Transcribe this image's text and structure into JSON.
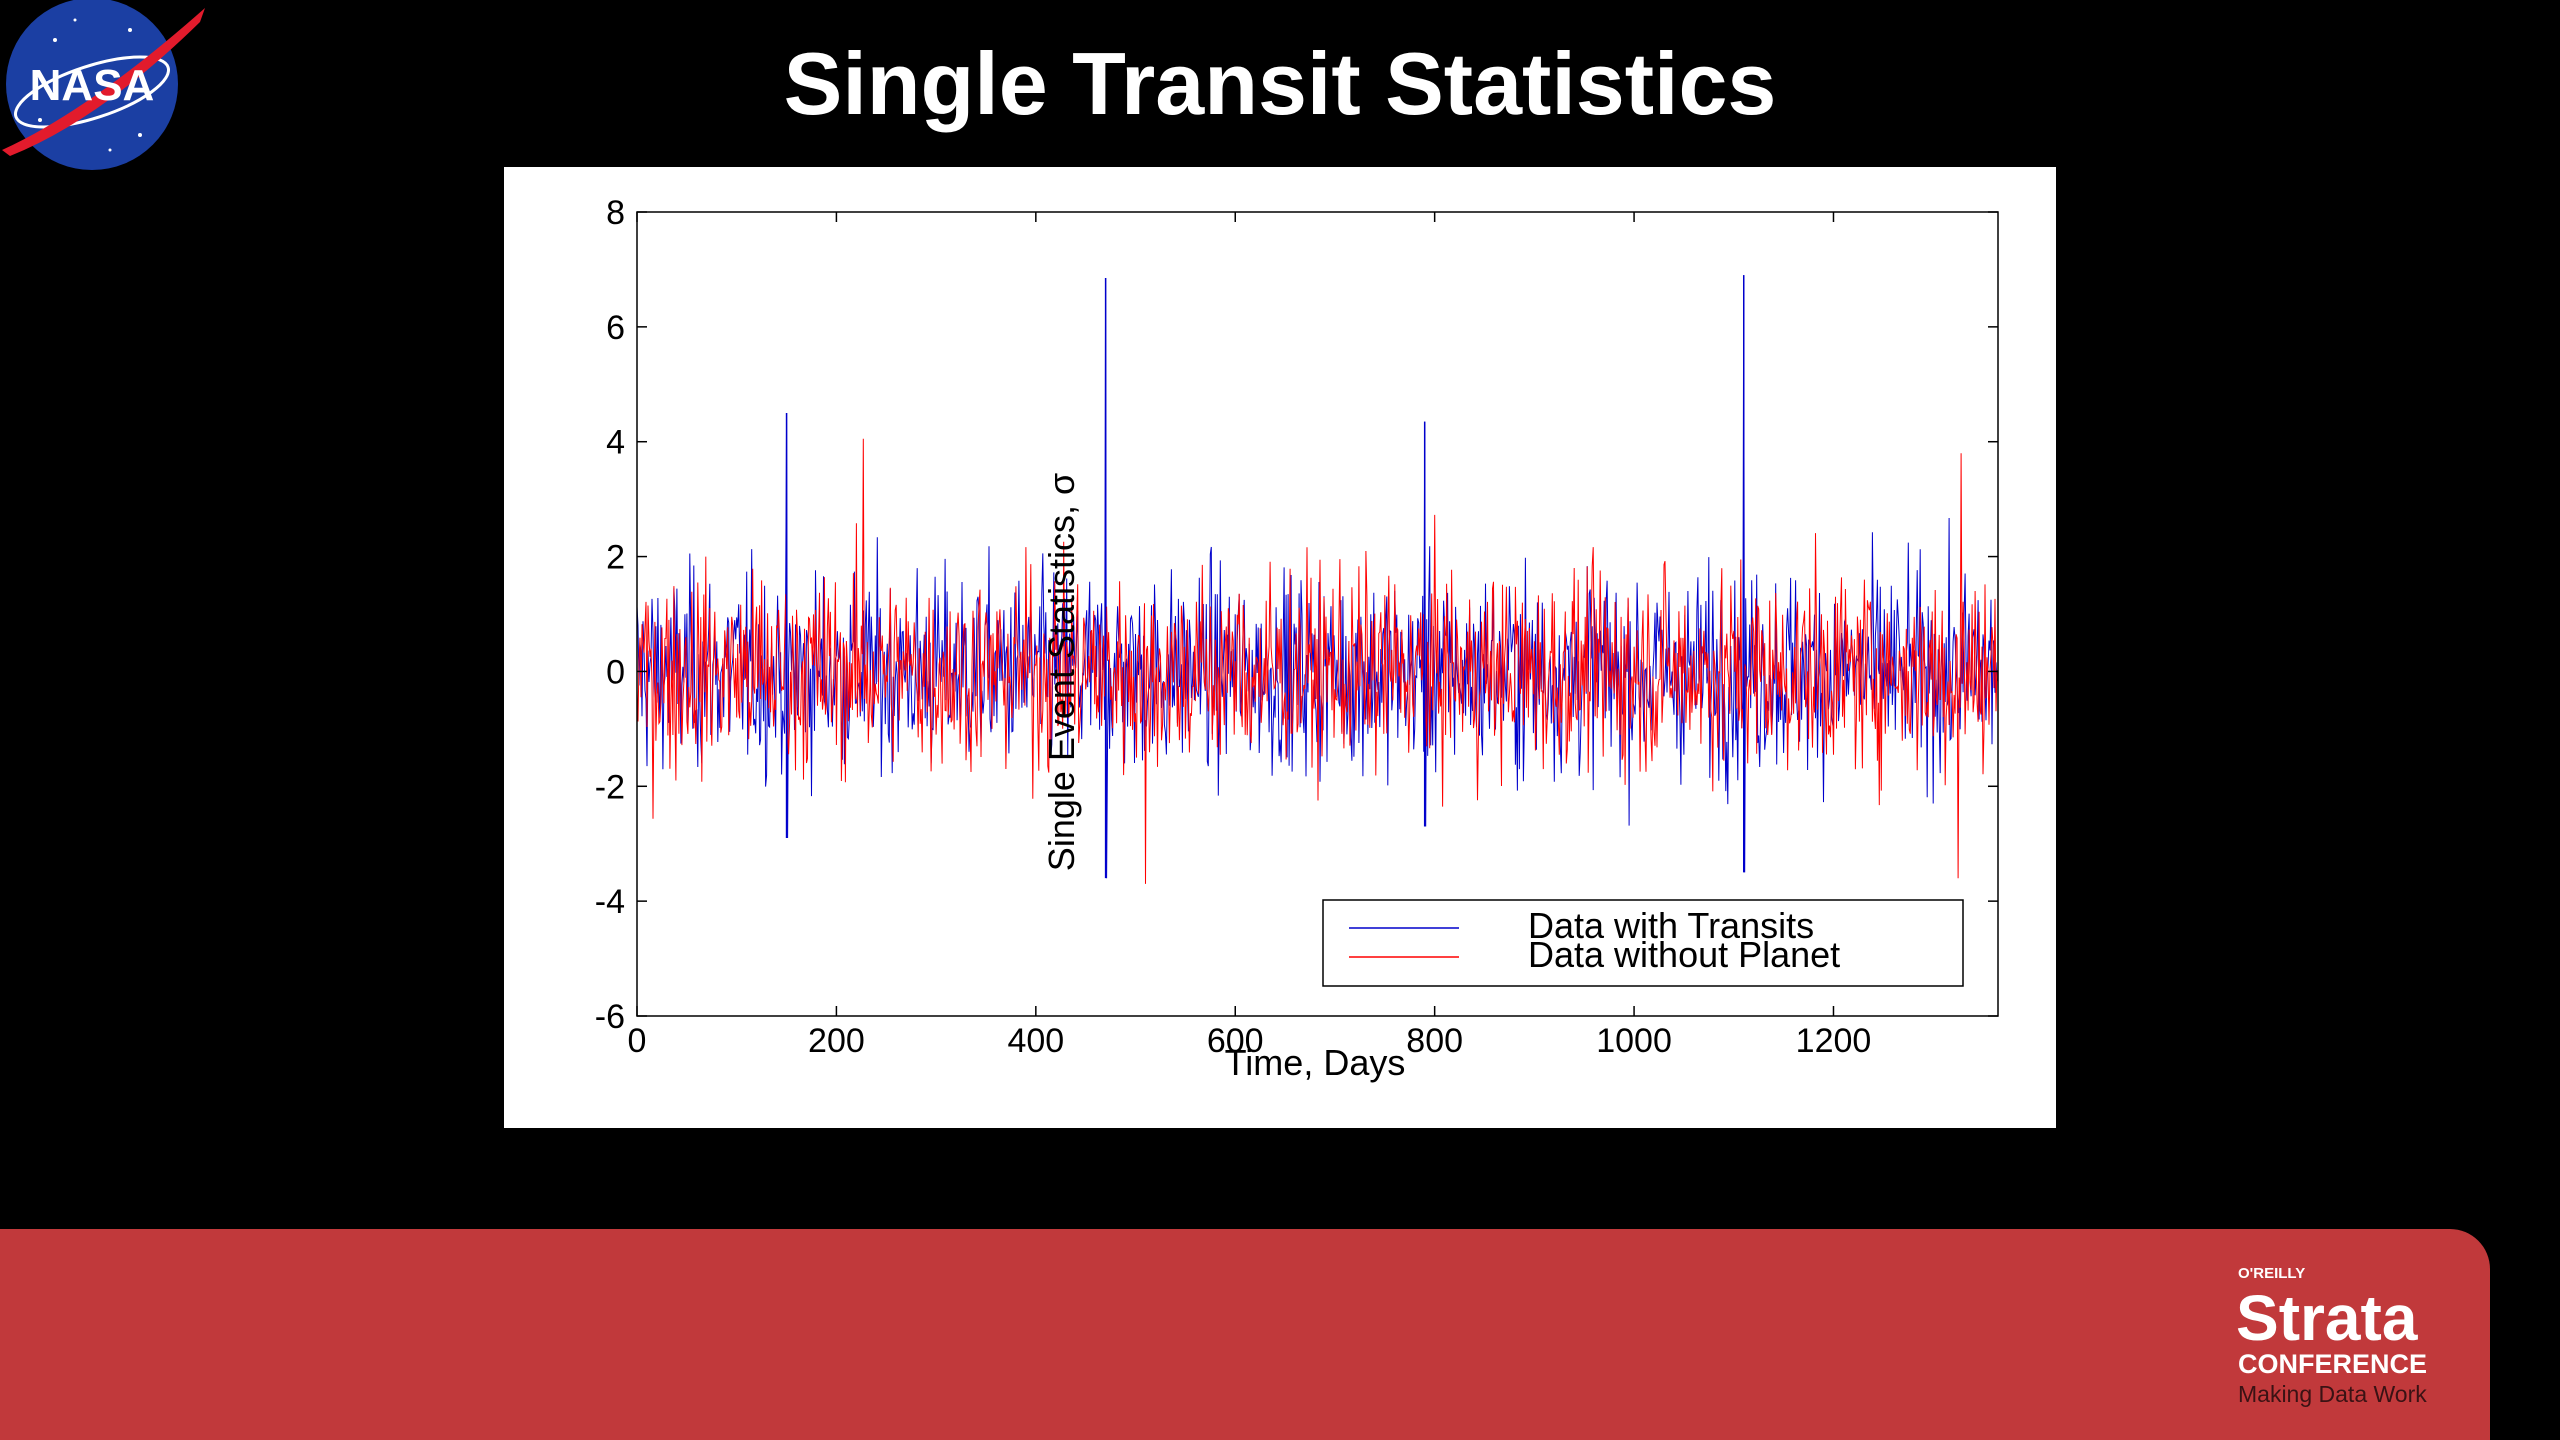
{
  "slide": {
    "title": "Single Transit Statistics",
    "nasa_logo_text": "NASA",
    "footer": {
      "publisher": "O'REILLY",
      "brand": "Strata",
      "subbrand": "CONFERENCE",
      "tagline": "Making Data Work"
    }
  },
  "colors": {
    "background": "#000000",
    "footer": "#c1393b",
    "series_with_transits": "#0000cc",
    "series_without_planet": "#ff0000"
  },
  "chart_data": {
    "type": "line",
    "title": "",
    "xlabel": "Time, Days",
    "ylabel": "Single Event Statistics, σ",
    "xlim": [
      0,
      1365
    ],
    "ylim": [
      -6,
      8
    ],
    "xticks": [
      0,
      200,
      400,
      600,
      800,
      1000,
      1200
    ],
    "yticks": [
      -6,
      -4,
      -2,
      0,
      2,
      4,
      6,
      8
    ],
    "grid": false,
    "legend": "bottom-right",
    "series": [
      {
        "name": "Data with Transits",
        "color": "#0000cc",
        "noise_sigma": 1.0,
        "transit_spikes": [
          {
            "x": 150,
            "y": 4.5,
            "low": -2.9
          },
          {
            "x": 470,
            "y": 6.85,
            "low": -3.6
          },
          {
            "x": 790,
            "y": 4.35,
            "low": -2.7
          },
          {
            "x": 1110,
            "y": 6.9,
            "low": -3.5
          }
        ]
      },
      {
        "name": "Data without Planet",
        "color": "#ff0000",
        "noise_sigma": 1.0,
        "range_min": -3.7,
        "range_max": 4.0,
        "notable_peaks": [
          {
            "x": 227,
            "y": 4.05
          },
          {
            "x": 1328,
            "y": 3.8
          },
          {
            "x": 510,
            "y": -3.7
          },
          {
            "x": 1325,
            "y": -3.6
          }
        ]
      }
    ]
  }
}
